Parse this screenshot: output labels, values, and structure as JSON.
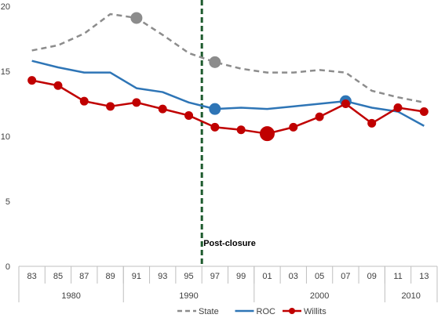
{
  "chart_data": {
    "type": "line",
    "title": "",
    "xlabel": "",
    "ylabel": "",
    "ylim": [
      0,
      20
    ],
    "y_ticks": [
      "0",
      "5",
      "10",
      "15",
      "20"
    ],
    "categories": [
      "83",
      "85",
      "87",
      "89",
      "91",
      "93",
      "95",
      "97",
      "99",
      "01",
      "03",
      "05",
      "07",
      "09",
      "11",
      "13"
    ],
    "groups": [
      {
        "label": "1980",
        "span": 4
      },
      {
        "label": "1990",
        "span": 5
      },
      {
        "label": "2000",
        "span": 5
      },
      {
        "label": "2010",
        "span": 2
      }
    ],
    "series": [
      {
        "name": "State",
        "color": "#8c8c8c",
        "style": "dashed",
        "values": [
          16.6,
          17.0,
          17.9,
          19.4,
          19.1,
          17.8,
          16.4,
          15.7,
          15.2,
          14.9,
          14.9,
          15.1,
          14.9,
          13.5,
          13.0,
          12.6
        ],
        "highlight": [
          {
            "index": 4,
            "size": "medium"
          },
          {
            "index": 7,
            "size": "medium"
          }
        ]
      },
      {
        "name": "ROC",
        "color": "#2e75b6",
        "style": "solid",
        "values": [
          15.8,
          15.3,
          14.9,
          14.9,
          13.7,
          13.4,
          12.6,
          12.1,
          12.2,
          12.1,
          12.3,
          12.5,
          12.7,
          12.2,
          11.9,
          10.8
        ],
        "highlight": [
          {
            "index": 7,
            "size": "medium"
          },
          {
            "index": 12,
            "size": "medium"
          }
        ]
      },
      {
        "name": "Willits",
        "color": "#c00000",
        "style": "solid-markers",
        "values": [
          14.3,
          13.9,
          12.7,
          12.3,
          12.6,
          12.1,
          11.6,
          10.7,
          10.5,
          10.2,
          10.7,
          11.5,
          12.5,
          11.0,
          12.2,
          11.9
        ],
        "highlight": [
          {
            "index": 9,
            "size": "large"
          }
        ]
      }
    ],
    "annotations": [
      {
        "text": "Post-closure",
        "at_category": "97",
        "type": "vertical-dashed-line",
        "color": "#1e5b2e"
      }
    ],
    "legend": {
      "position": "bottom",
      "entries": [
        "State",
        "ROC",
        "Willits"
      ]
    },
    "grid": false
  }
}
